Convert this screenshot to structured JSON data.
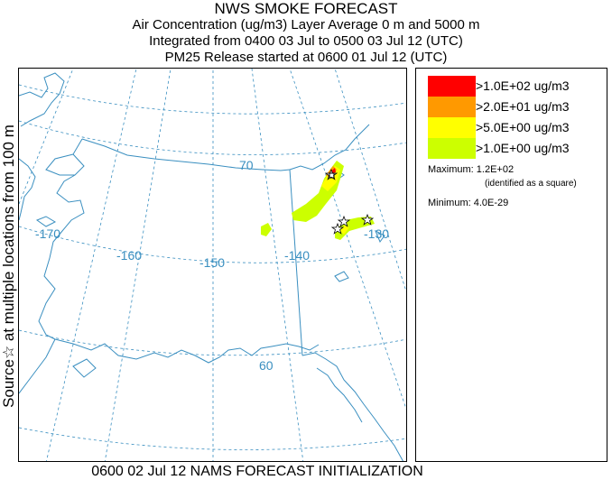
{
  "header": {
    "title": "NWS SMOKE FORECAST",
    "line2": "Air Concentration (ug/m3) Layer Average     0 m and  5000 m",
    "line3": "Integrated from 0400 03 Jul to 0500 03 Jul 12 (UTC)",
    "line4": "PM25 Release started at 0600 01 Jul 12 (UTC)"
  },
  "side_label": "Source☆ at multiple locations from 100 m",
  "map": {
    "lat_labels": [
      "70",
      "60"
    ],
    "lon_labels": [
      "-170",
      "-160",
      "-150",
      "-140",
      "-130"
    ],
    "colors": {
      "coast": "#3a8fc0",
      "grid": "#3a8fc0"
    }
  },
  "legend": {
    "items": [
      {
        "label": ">1.0E+02 ug/m3",
        "color": "#ff0000"
      },
      {
        "label": ">2.0E+01 ug/m3",
        "color": "#ff9900"
      },
      {
        "label": ">5.0E+00 ug/m3",
        "color": "#ffff00"
      },
      {
        "label": ">1.0E+00 ug/m3",
        "color": "#ccff00"
      }
    ],
    "maximum": "Maximum: 1.2E+02",
    "maximum_note": "(identified as a square)",
    "minimum": "Minimum: 4.0E-29"
  },
  "footer": "0600 02 Jul 12 NAMS FORECAST INITIALIZATION"
}
